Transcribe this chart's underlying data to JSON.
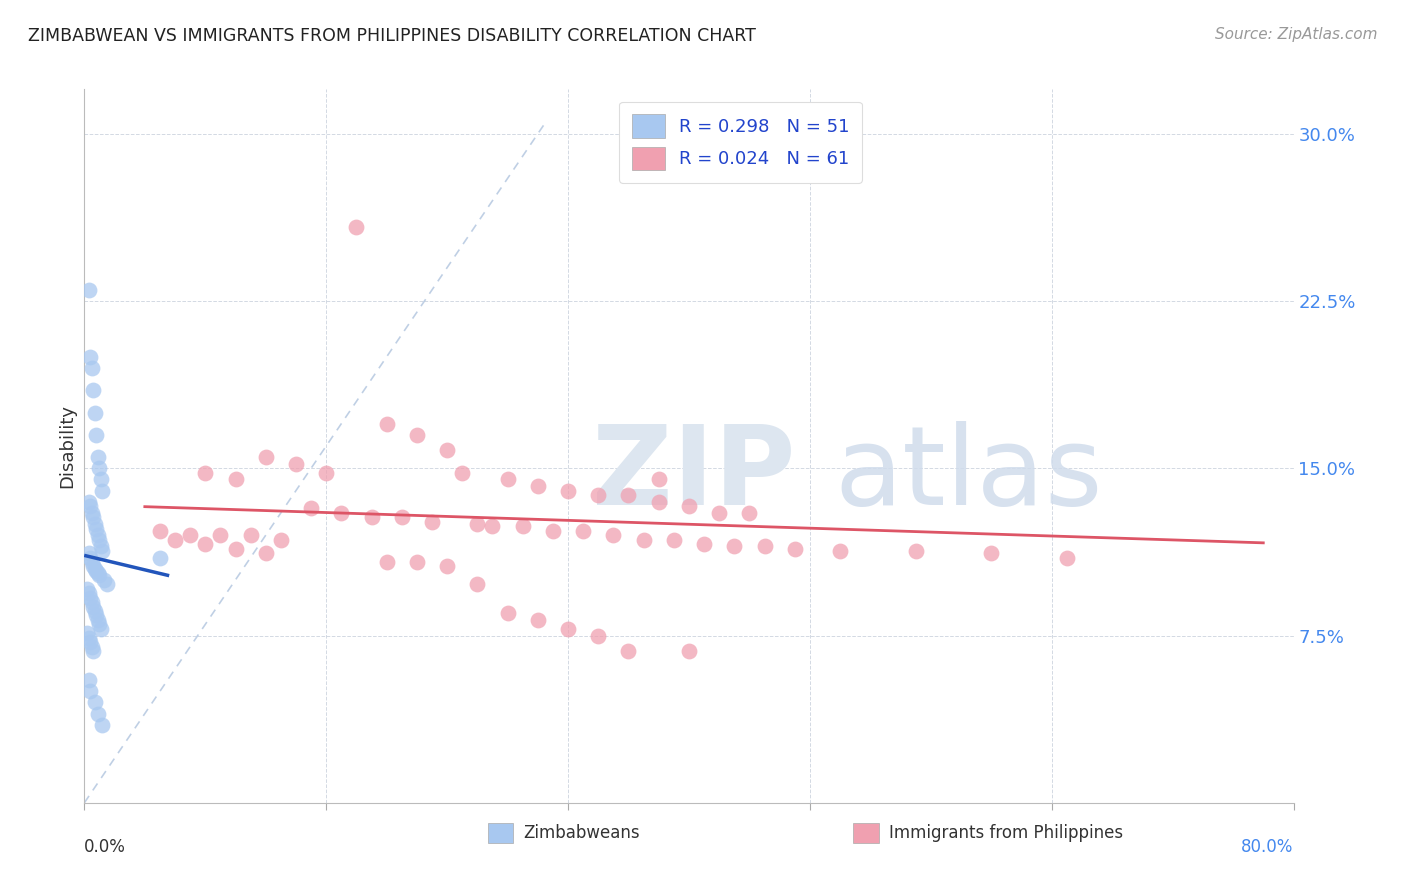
{
  "title": "ZIMBABWEAN VS IMMIGRANTS FROM PHILIPPINES DISABILITY CORRELATION CHART",
  "source": "Source: ZipAtlas.com",
  "ylabel": "Disability",
  "xlim": [
    0.0,
    0.8
  ],
  "ylim": [
    0.0,
    0.32
  ],
  "yticks": [
    0.075,
    0.15,
    0.225,
    0.3
  ],
  "ytick_labels": [
    "7.5%",
    "15.0%",
    "22.5%",
    "30.0%"
  ],
  "xticks": [
    0.0,
    0.16,
    0.32,
    0.48,
    0.64,
    0.8
  ],
  "legend_r1": "R = 0.298",
  "legend_n1": "N = 51",
  "legend_r2": "R = 0.024",
  "legend_n2": "N = 61",
  "legend_label1": "Zimbabweans",
  "legend_label2": "Immigrants from Philippines",
  "blue_color": "#A8C8F0",
  "pink_color": "#F0A0B0",
  "blue_line_color": "#2255BB",
  "pink_line_color": "#DD5566",
  "diag_color": "#B0C4DE",
  "zimbabwe_x": [
    0.003,
    0.004,
    0.005,
    0.006,
    0.007,
    0.008,
    0.009,
    0.01,
    0.011,
    0.012,
    0.003,
    0.004,
    0.005,
    0.006,
    0.007,
    0.008,
    0.009,
    0.01,
    0.011,
    0.012,
    0.003,
    0.004,
    0.005,
    0.006,
    0.007,
    0.008,
    0.009,
    0.01,
    0.013,
    0.015,
    0.002,
    0.003,
    0.004,
    0.005,
    0.006,
    0.007,
    0.008,
    0.009,
    0.01,
    0.011,
    0.002,
    0.003,
    0.004,
    0.005,
    0.006,
    0.05,
    0.003,
    0.004,
    0.007,
    0.009,
    0.012
  ],
  "zimbabwe_y": [
    0.23,
    0.2,
    0.195,
    0.185,
    0.175,
    0.165,
    0.155,
    0.15,
    0.145,
    0.14,
    0.135,
    0.133,
    0.13,
    0.128,
    0.125,
    0.123,
    0.12,
    0.118,
    0.115,
    0.113,
    0.112,
    0.11,
    0.108,
    0.106,
    0.105,
    0.104,
    0.103,
    0.102,
    0.1,
    0.098,
    0.096,
    0.094,
    0.092,
    0.09,
    0.088,
    0.086,
    0.084,
    0.082,
    0.08,
    0.078,
    0.076,
    0.074,
    0.072,
    0.07,
    0.068,
    0.11,
    0.055,
    0.05,
    0.045,
    0.04,
    0.035
  ],
  "philippines_x": [
    0.48,
    0.18,
    0.2,
    0.22,
    0.24,
    0.12,
    0.14,
    0.16,
    0.08,
    0.1,
    0.25,
    0.28,
    0.3,
    0.32,
    0.34,
    0.36,
    0.38,
    0.4,
    0.42,
    0.44,
    0.15,
    0.17,
    0.19,
    0.21,
    0.23,
    0.26,
    0.27,
    0.29,
    0.31,
    0.33,
    0.05,
    0.07,
    0.09,
    0.11,
    0.13,
    0.35,
    0.37,
    0.39,
    0.41,
    0.43,
    0.45,
    0.47,
    0.5,
    0.55,
    0.6,
    0.65,
    0.06,
    0.08,
    0.1,
    0.12,
    0.2,
    0.22,
    0.24,
    0.26,
    0.28,
    0.3,
    0.32,
    0.34,
    0.36,
    0.38,
    0.4
  ],
  "philippines_y": [
    0.295,
    0.258,
    0.17,
    0.165,
    0.158,
    0.155,
    0.152,
    0.148,
    0.148,
    0.145,
    0.148,
    0.145,
    0.142,
    0.14,
    0.138,
    0.138,
    0.135,
    0.133,
    0.13,
    0.13,
    0.132,
    0.13,
    0.128,
    0.128,
    0.126,
    0.125,
    0.124,
    0.124,
    0.122,
    0.122,
    0.122,
    0.12,
    0.12,
    0.12,
    0.118,
    0.12,
    0.118,
    0.118,
    0.116,
    0.115,
    0.115,
    0.114,
    0.113,
    0.113,
    0.112,
    0.11,
    0.118,
    0.116,
    0.114,
    0.112,
    0.108,
    0.108,
    0.106,
    0.098,
    0.085,
    0.082,
    0.078,
    0.075,
    0.068,
    0.145,
    0.068
  ]
}
